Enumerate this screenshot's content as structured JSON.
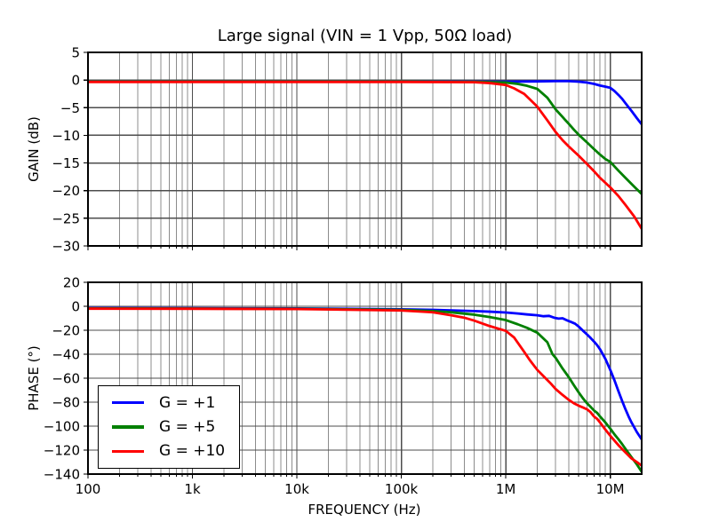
{
  "title": "Large signal (VIN = 1 Vpp, 50Ω load)",
  "xlabel": "FREQUENCY (Hz)",
  "style": {
    "major_grid_color": "#4d4d4d",
    "minor_grid_color": "#8c8c8c",
    "spine_color": "#000000",
    "background": "#ffffff"
  },
  "legend": {
    "position": "lower left",
    "items": [
      {
        "label": "G = +1",
        "color": "#0000ff"
      },
      {
        "label": "G = +5",
        "color": "#008000"
      },
      {
        "label": "G = +10",
        "color": "#ff0000"
      }
    ]
  },
  "chart_data": [
    {
      "type": "line",
      "subplot": "gain",
      "ylabel": "GAIN (dB)",
      "xscale": "log",
      "grid": "both",
      "xlim": [
        100,
        20000000
      ],
      "ylim": [
        -30,
        5
      ],
      "yticks": [
        5,
        0,
        -5,
        -10,
        -15,
        -20,
        -25,
        -30
      ],
      "ytick_labels": [
        "5",
        "0",
        "−5",
        "−10",
        "−15",
        "−20",
        "−25",
        "−30"
      ],
      "xticks": [
        100,
        1000,
        10000,
        100000,
        1000000,
        10000000
      ],
      "xtick_labels": [
        "100",
        "1k",
        "10k",
        "100k",
        "1M",
        "10M"
      ],
      "show_xtick_labels": false,
      "series": [
        {
          "name": "G = +1",
          "color": "#0000ff",
          "points": [
            [
              100,
              -0.3
            ],
            [
              1000,
              -0.3
            ],
            [
              10000,
              -0.3
            ],
            [
              100000,
              -0.3
            ],
            [
              500000,
              -0.3
            ],
            [
              1000000,
              -0.3
            ],
            [
              2000000,
              -0.25
            ],
            [
              3000000,
              -0.2
            ],
            [
              4000000,
              -0.2
            ],
            [
              5000000,
              -0.3
            ],
            [
              6000000,
              -0.45
            ],
            [
              7000000,
              -0.7
            ],
            [
              8000000,
              -1.0
            ],
            [
              9000000,
              -1.2
            ],
            [
              10000000,
              -1.4
            ],
            [
              11000000,
              -2.0
            ],
            [
              12000000,
              -2.7
            ],
            [
              13000000,
              -3.4
            ],
            [
              14000000,
              -4.2
            ],
            [
              16000000,
              -5.6
            ],
            [
              18000000,
              -6.9
            ],
            [
              20000000,
              -8.0
            ]
          ]
        },
        {
          "name": "G = +5",
          "color": "#008000",
          "points": [
            [
              100,
              -0.3
            ],
            [
              1000,
              -0.3
            ],
            [
              10000,
              -0.3
            ],
            [
              100000,
              -0.3
            ],
            [
              500000,
              -0.35
            ],
            [
              1000000,
              -0.45
            ],
            [
              1300000,
              -0.7
            ],
            [
              1600000,
              -1.05
            ],
            [
              2000000,
              -1.6
            ],
            [
              2500000,
              -3.2
            ],
            [
              3000000,
              -5.3
            ],
            [
              3500000,
              -6.7
            ],
            [
              4000000,
              -7.9
            ],
            [
              4500000,
              -9.0
            ],
            [
              5000000,
              -9.9
            ],
            [
              6000000,
              -11.3
            ],
            [
              7000000,
              -12.5
            ],
            [
              8000000,
              -13.5
            ],
            [
              9000000,
              -14.3
            ],
            [
              10000000,
              -14.8
            ],
            [
              12000000,
              -16.4
            ],
            [
              14000000,
              -17.7
            ],
            [
              17000000,
              -19.3
            ],
            [
              20000000,
              -20.6
            ]
          ]
        },
        {
          "name": "G = +10",
          "color": "#ff0000",
          "points": [
            [
              100,
              -0.35
            ],
            [
              1000,
              -0.35
            ],
            [
              10000,
              -0.35
            ],
            [
              100000,
              -0.35
            ],
            [
              500000,
              -0.4
            ],
            [
              700000,
              -0.55
            ],
            [
              1000000,
              -0.9
            ],
            [
              1200000,
              -1.5
            ],
            [
              1500000,
              -2.5
            ],
            [
              2000000,
              -4.8
            ],
            [
              2500000,
              -7.3
            ],
            [
              3000000,
              -9.4
            ],
            [
              3500000,
              -10.9
            ],
            [
              4000000,
              -12.0
            ],
            [
              4500000,
              -12.9
            ],
            [
              5000000,
              -13.7
            ],
            [
              6000000,
              -15.2
            ],
            [
              7000000,
              -16.5
            ],
            [
              8000000,
              -17.7
            ],
            [
              9000000,
              -18.6
            ],
            [
              10000000,
              -19.4
            ],
            [
              12000000,
              -21.0
            ],
            [
              14000000,
              -22.6
            ],
            [
              17000000,
              -24.7
            ],
            [
              20000000,
              -26.9
            ]
          ]
        }
      ]
    },
    {
      "type": "line",
      "subplot": "phase",
      "ylabel": "PHASE (°)",
      "xscale": "log",
      "grid": "both",
      "xlim": [
        100,
        20000000
      ],
      "ylim": [
        -140,
        20
      ],
      "yticks": [
        20,
        0,
        -20,
        -40,
        -60,
        -80,
        -100,
        -120,
        -140
      ],
      "ytick_labels": [
        "20",
        "0",
        "−20",
        "−40",
        "−60",
        "−80",
        "−100",
        "−120",
        "−140"
      ],
      "xticks": [
        100,
        1000,
        10000,
        100000,
        1000000,
        10000000
      ],
      "xtick_labels": [
        "100",
        "1k",
        "10k",
        "100k",
        "1M",
        "10M"
      ],
      "show_xtick_labels": true,
      "series": [
        {
          "name": "G = +1",
          "color": "#0000ff",
          "points": [
            [
              100,
              -1.5
            ],
            [
              1000,
              -1.6
            ],
            [
              10000,
              -1.8
            ],
            [
              100000,
              -2.5
            ],
            [
              200000,
              -3.0
            ],
            [
              300000,
              -3.4
            ],
            [
              500000,
              -4.0
            ],
            [
              700000,
              -4.5
            ],
            [
              1000000,
              -5.2
            ],
            [
              1300000,
              -6.0
            ],
            [
              1600000,
              -6.8
            ],
            [
              2000000,
              -7.5
            ],
            [
              2300000,
              -8.3
            ],
            [
              2600000,
              -8.0
            ],
            [
              2900000,
              -9.5
            ],
            [
              3200000,
              -10.3
            ],
            [
              3500000,
              -10.0
            ],
            [
              3800000,
              -11.5
            ],
            [
              4200000,
              -13.0
            ],
            [
              4600000,
              -14.5
            ],
            [
              5000000,
              -17.0
            ],
            [
              5500000,
              -20.5
            ],
            [
              6000000,
              -23.5
            ],
            [
              6500000,
              -26.5
            ],
            [
              7000000,
              -29.5
            ],
            [
              7500000,
              -32.5
            ],
            [
              8000000,
              -36.0
            ],
            [
              9000000,
              -44.0
            ],
            [
              10000000,
              -53.0
            ],
            [
              11000000,
              -62.0
            ],
            [
              12000000,
              -71.0
            ],
            [
              13000000,
              -79.0
            ],
            [
              14000000,
              -86.0
            ],
            [
              15000000,
              -92.0
            ],
            [
              16000000,
              -97.0
            ],
            [
              18000000,
              -105.0
            ],
            [
              20000000,
              -111.0
            ]
          ]
        },
        {
          "name": "G = +5",
          "color": "#008000",
          "points": [
            [
              100,
              -1.8
            ],
            [
              1000,
              -1.9
            ],
            [
              10000,
              -2.1
            ],
            [
              100000,
              -3.0
            ],
            [
              200000,
              -4.0
            ],
            [
              300000,
              -5.0
            ],
            [
              500000,
              -7.0
            ],
            [
              700000,
              -9.0
            ],
            [
              1000000,
              -11.5
            ],
            [
              1300000,
              -15.0
            ],
            [
              1600000,
              -18.0
            ],
            [
              2000000,
              -22.0
            ],
            [
              2500000,
              -30.0
            ],
            [
              2800000,
              -40.0
            ],
            [
              3000000,
              -43.0
            ],
            [
              3500000,
              -52.0
            ],
            [
              4000000,
              -59.0
            ],
            [
              4500000,
              -66.0
            ],
            [
              5000000,
              -72.0
            ],
            [
              5500000,
              -77.0
            ],
            [
              6000000,
              -81.0
            ],
            [
              6500000,
              -84.0
            ],
            [
              7000000,
              -87.0
            ],
            [
              7500000,
              -89.0
            ],
            [
              8000000,
              -92.0
            ],
            [
              9000000,
              -97.0
            ],
            [
              10000000,
              -102.0
            ],
            [
              11000000,
              -107.0
            ],
            [
              12000000,
              -111.0
            ],
            [
              13000000,
              -115.0
            ],
            [
              14000000,
              -119.0
            ],
            [
              16000000,
              -126.0
            ],
            [
              18000000,
              -132.0
            ],
            [
              20000000,
              -138.0
            ]
          ]
        },
        {
          "name": "G = +10",
          "color": "#ff0000",
          "points": [
            [
              100,
              -2.0
            ],
            [
              1000,
              -2.1
            ],
            [
              10000,
              -2.3
            ],
            [
              100000,
              -3.5
            ],
            [
              200000,
              -5.0
            ],
            [
              300000,
              -7.5
            ],
            [
              400000,
              -9.5
            ],
            [
              500000,
              -12.0
            ],
            [
              700000,
              -16.5
            ],
            [
              1000000,
              -20.5
            ],
            [
              1200000,
              -26.0
            ],
            [
              1500000,
              -38.0
            ],
            [
              1700000,
              -45.0
            ],
            [
              2000000,
              -53.0
            ],
            [
              2400000,
              -60.0
            ],
            [
              2700000,
              -64.5
            ],
            [
              3000000,
              -69.0
            ],
            [
              3500000,
              -74.0
            ],
            [
              4000000,
              -78.0
            ],
            [
              4500000,
              -81.0
            ],
            [
              5000000,
              -83.0
            ],
            [
              5500000,
              -84.5
            ],
            [
              6000000,
              -86.0
            ],
            [
              6500000,
              -88.5
            ],
            [
              7000000,
              -92.0
            ],
            [
              7500000,
              -94.0
            ],
            [
              8000000,
              -97.0
            ],
            [
              9000000,
              -103.0
            ],
            [
              10000000,
              -108.0
            ],
            [
              12000000,
              -116.0
            ],
            [
              14000000,
              -122.0
            ],
            [
              16000000,
              -127.0
            ],
            [
              18000000,
              -130.0
            ],
            [
              20000000,
              -133.0
            ]
          ]
        }
      ]
    }
  ]
}
